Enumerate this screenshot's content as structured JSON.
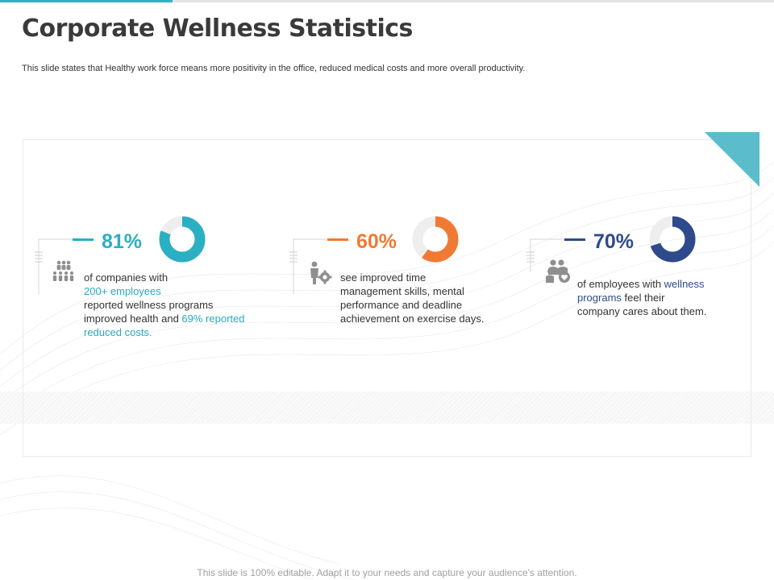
{
  "slide": {
    "title": "Corporate Wellness Statistics",
    "subtitle": "This slide states that Healthy work force means more positivity in the office, reduced medical costs and more overall productivity.",
    "footer": "This slide is 100% editable. Adapt it to your needs and capture your audience's attention."
  },
  "stats": [
    {
      "percent_label": "81%",
      "value": 81,
      "color": "#2bafc3",
      "icon": "people-group-icon",
      "desc_1": "of companies with",
      "desc_2": "200+ employees",
      "desc_3": "reported wellness programs",
      "desc_4": "improved health and ",
      "desc_5": "69% reported",
      "desc_6": "reduced costs."
    },
    {
      "percent_label": "60%",
      "value": 60,
      "color": "#f07a33",
      "icon": "person-gear-icon",
      "desc_1": "see improved time",
      "desc_2": "management skills, mental",
      "desc_3": "performance and deadline",
      "desc_4": "achievement on exercise days."
    },
    {
      "percent_label": "70%",
      "value": 70,
      "color": "#2e4a8c",
      "icon": "people-heart-icon",
      "desc_1": "of employees with ",
      "desc_2": "wellness",
      "desc_3": "programs",
      "desc_4": " feel their",
      "desc_5": "company cares about them."
    }
  ]
}
